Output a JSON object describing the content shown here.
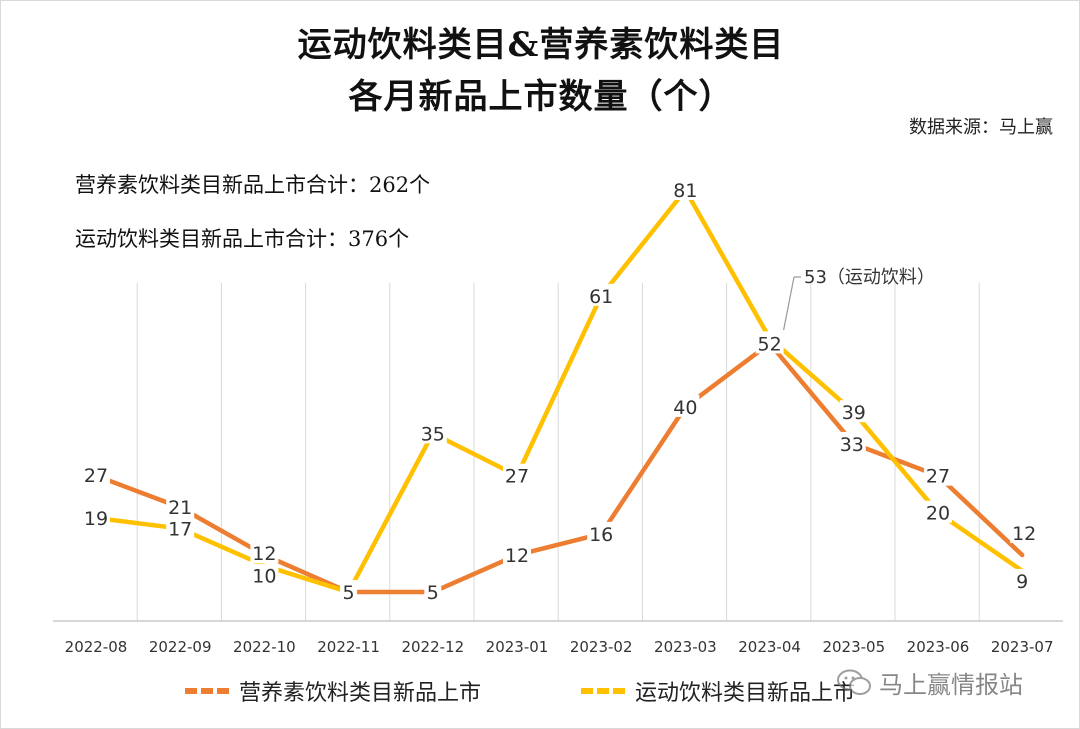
{
  "header": {
    "title_line1": "运动饮料类目&营养素饮料类目",
    "title_line2": "各月新品上市数量（个）",
    "source": "数据来源：马上赢"
  },
  "totals": {
    "nutrient_total": "营养素饮料类目新品上市合计：262个",
    "sports_total": "运动饮料类目新品上市合计：376个"
  },
  "annotation": {
    "text": "53（运动饮料）"
  },
  "watermark": {
    "text": "马上赢情报站"
  },
  "colors": {
    "nutrient": "#ED7D31",
    "sports": "#FFC000",
    "grid": "#d9d9d9",
    "axis": "#bfbfbf"
  },
  "chart_data": {
    "type": "line",
    "categories": [
      "2022-08",
      "2022-09",
      "2022-10",
      "2022-11",
      "2022-12",
      "2023-01",
      "2023-02",
      "2023-03",
      "2023-04",
      "2023-05",
      "2023-06",
      "2023-07"
    ],
    "series": [
      {
        "name": "营养素饮料类目新品上市",
        "color": "#ED7D31",
        "values": [
          27,
          21,
          12,
          5,
          5,
          12,
          16,
          40,
          52,
          33,
          27,
          12
        ]
      },
      {
        "name": "运动饮料类目新品上市",
        "color": "#FFC000",
        "values": [
          19,
          17,
          10,
          5,
          35,
          27,
          61,
          81,
          53,
          39,
          20,
          9
        ]
      }
    ],
    "ylim": [
      0,
      95
    ],
    "grid": "vertical",
    "legend_position": "bottom"
  }
}
